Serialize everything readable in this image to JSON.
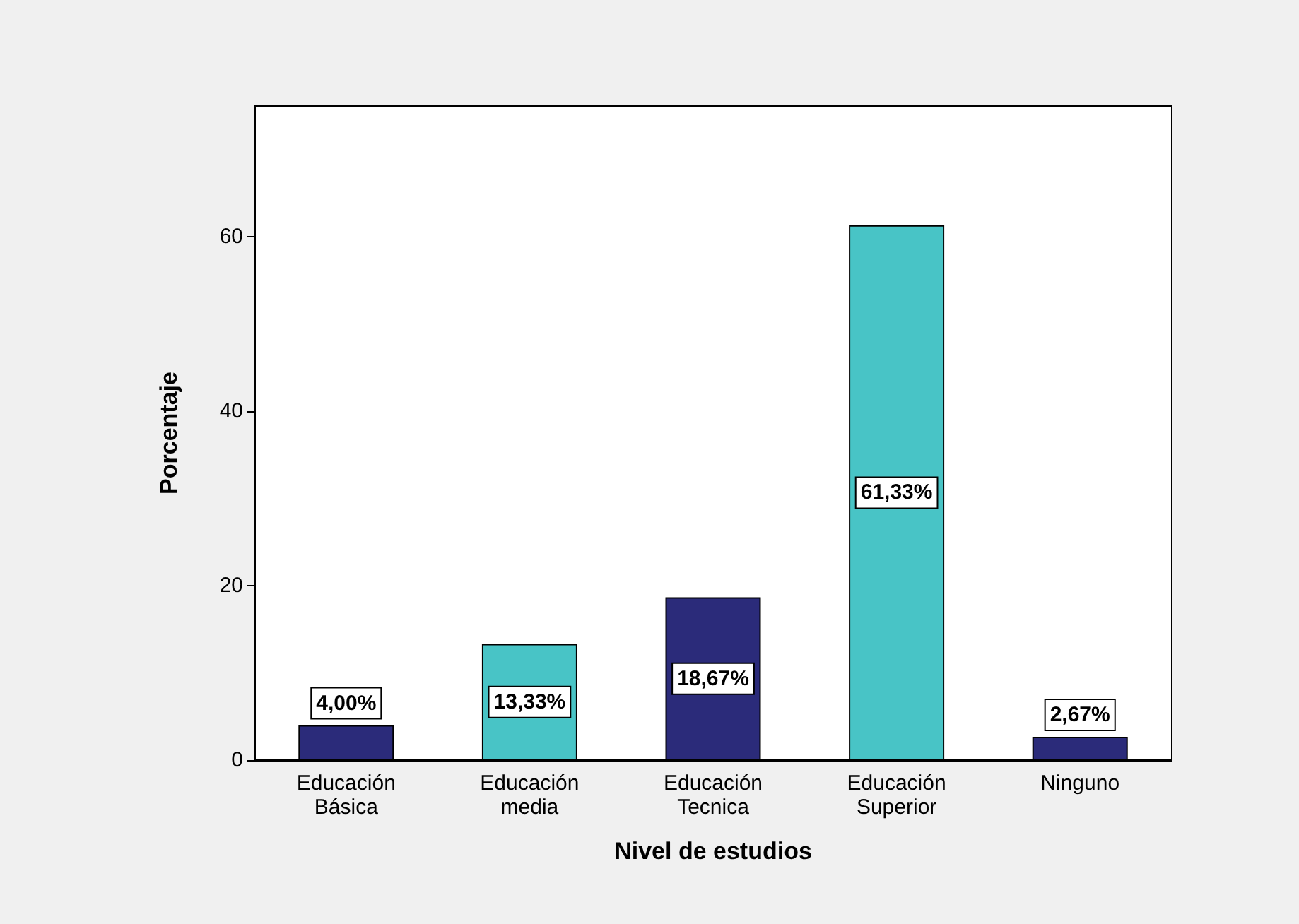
{
  "chart_data": {
    "type": "bar",
    "xlabel": "Nivel de estudios",
    "ylabel": "Porcentaje",
    "categories": [
      "Educación\nBásica",
      "Educación\nmedia",
      "Educación\nTecnica",
      "Educación\nSuperior",
      "Ninguno"
    ],
    "values": [
      4.0,
      13.33,
      18.67,
      61.33,
      2.67
    ],
    "colors": [
      "#2b2b7a",
      "#48c4c6",
      "#2b2b7a",
      "#48c4c6",
      "#2b2b7a"
    ],
    "value_labels": [
      "4,00%",
      "13,33%",
      "18,67%",
      "61,33%",
      "2,67%"
    ],
    "ylim": [
      0,
      75
    ],
    "yticks": [
      0,
      20,
      40,
      60
    ],
    "grid": false
  }
}
